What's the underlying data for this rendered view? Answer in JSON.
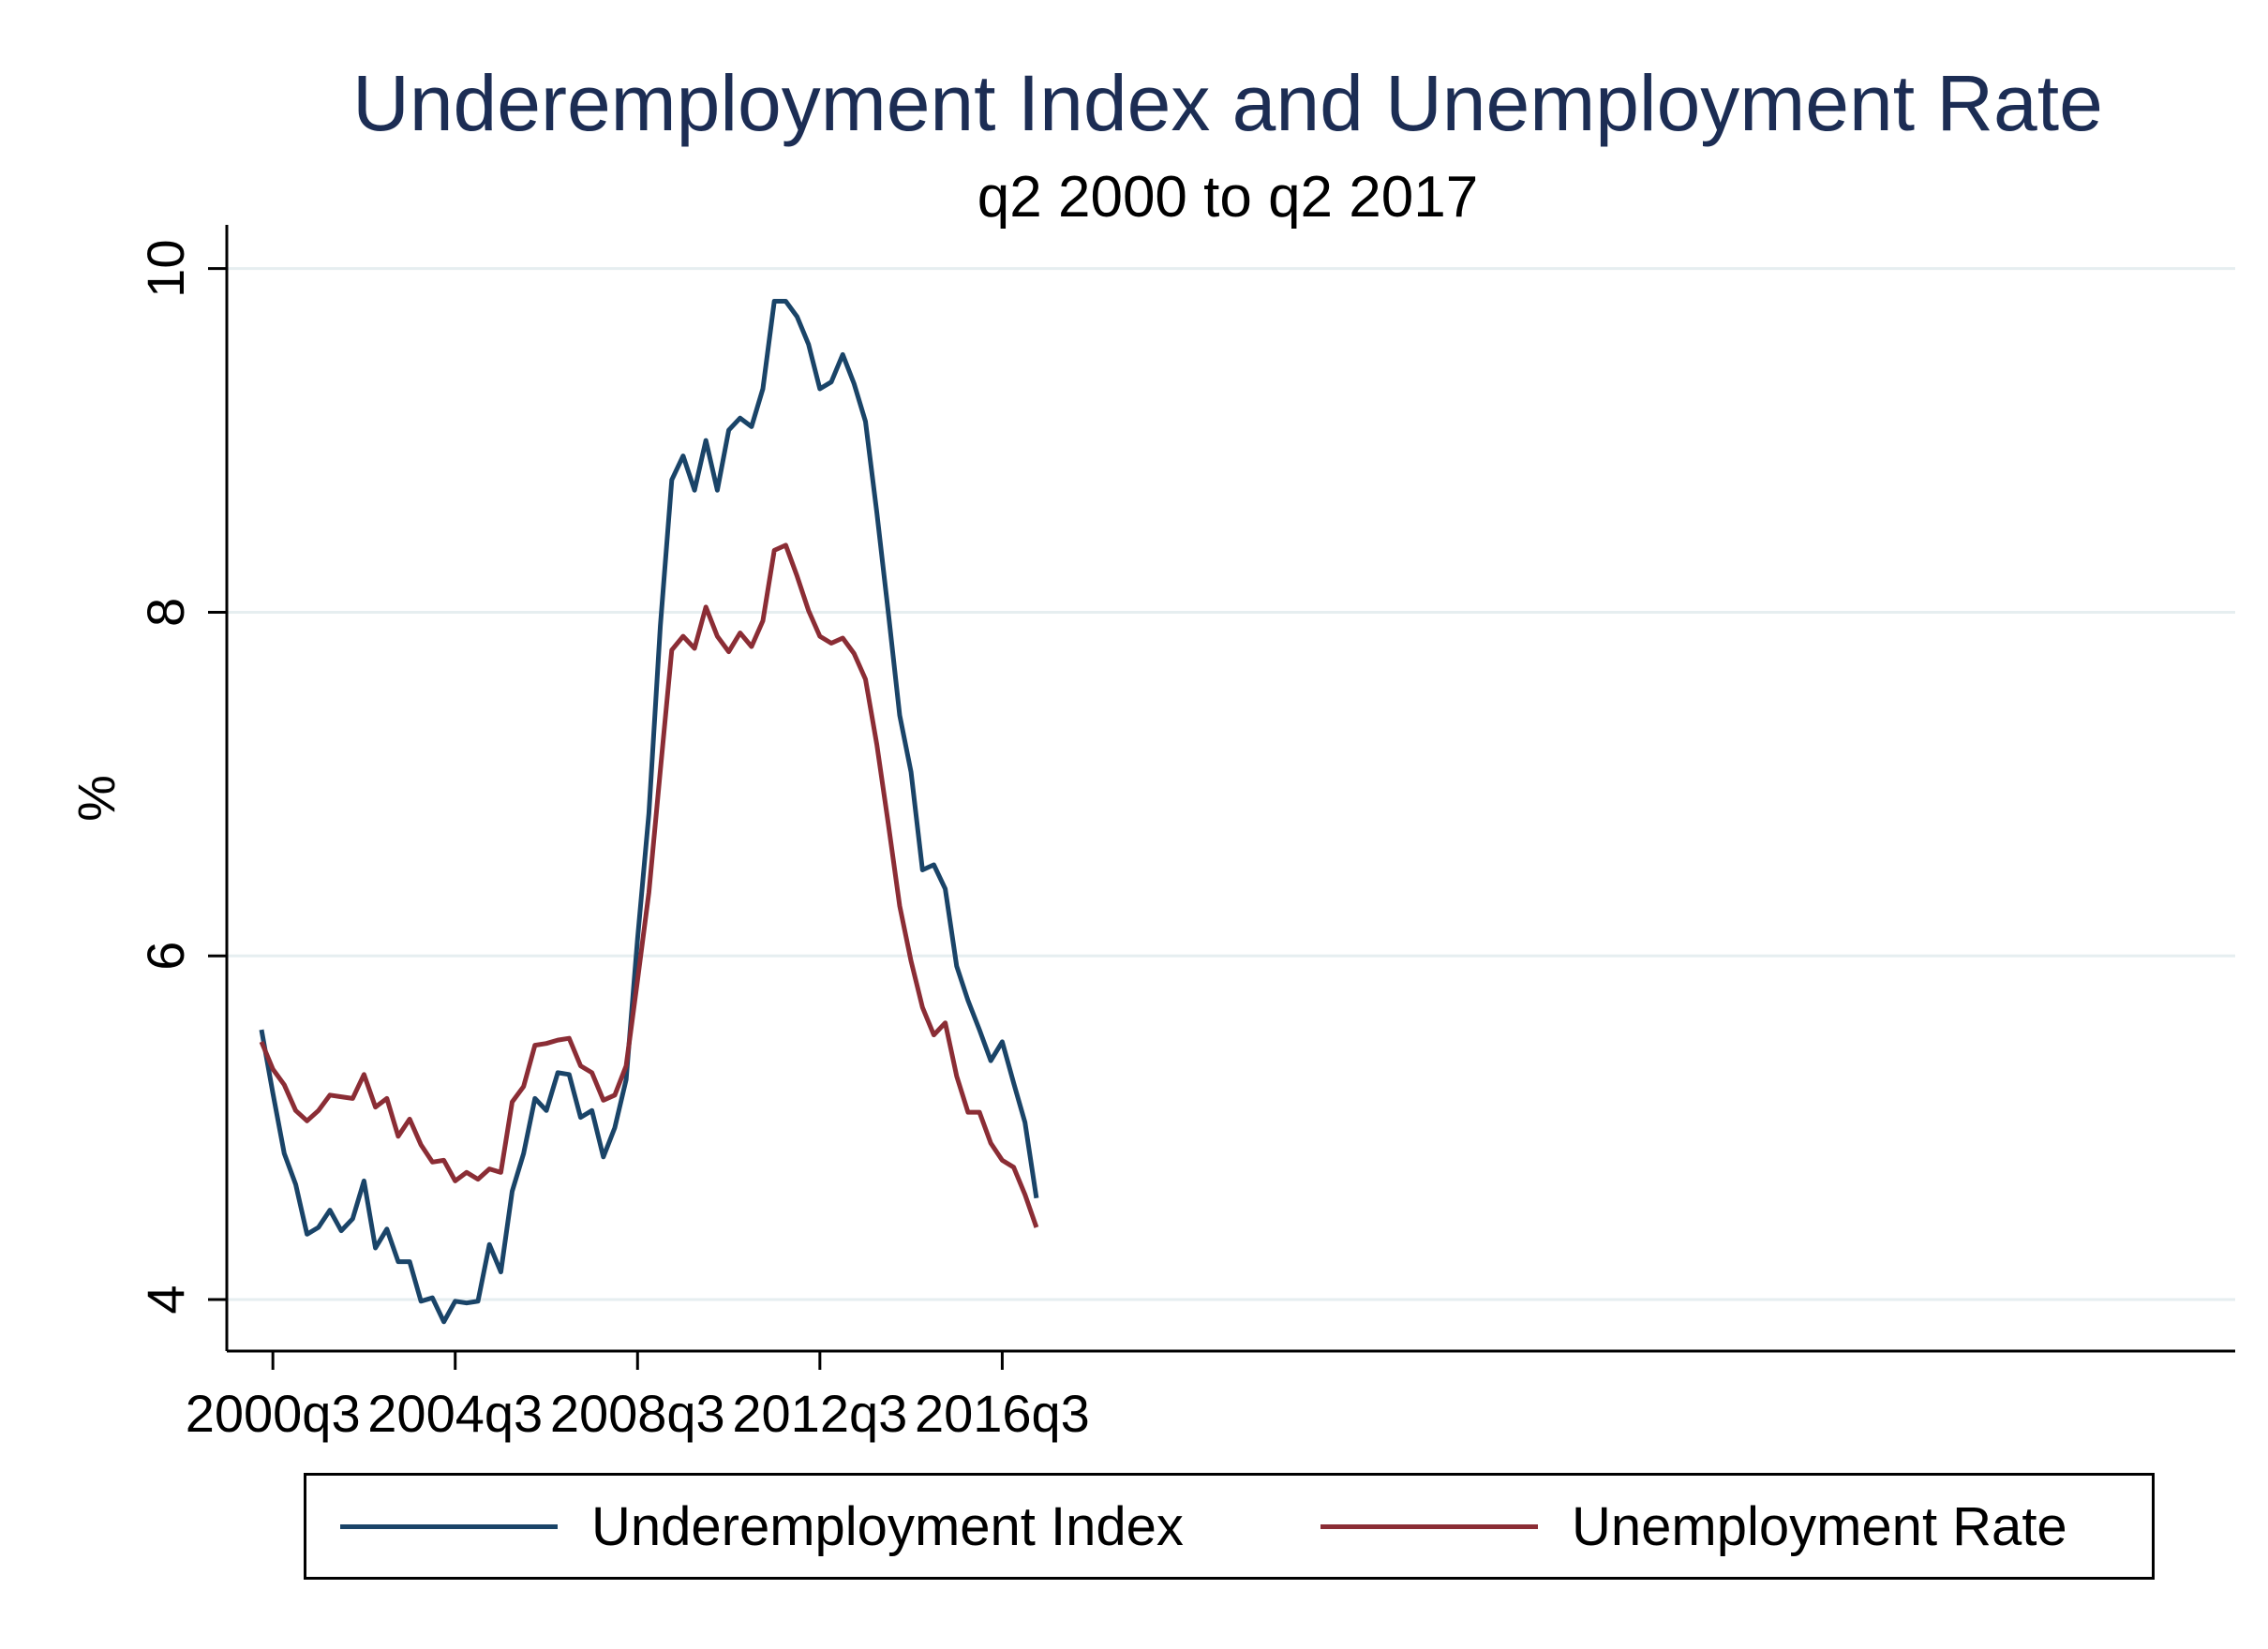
{
  "chart_data": {
    "type": "line",
    "title": "Underemployment Index and Unemployment Rate",
    "subtitle": "q2 2000 to q2 2017",
    "ylabel": "%",
    "xlabel": "",
    "ylim": [
      3.7,
      10.2
    ],
    "yticks": [
      4,
      6,
      8,
      10
    ],
    "xticks": [
      "2000q3",
      "2004q3",
      "2008q3",
      "2012q3",
      "2016q3"
    ],
    "grid": true,
    "legend_position": "bottom",
    "x": [
      "2000q2",
      "2000q3",
      "2000q4",
      "2001q1",
      "2001q2",
      "2001q3",
      "2001q4",
      "2002q1",
      "2002q2",
      "2002q3",
      "2002q4",
      "2003q1",
      "2003q2",
      "2003q3",
      "2003q4",
      "2004q1",
      "2004q2",
      "2004q3",
      "2004q4",
      "2005q1",
      "2005q2",
      "2005q3",
      "2005q4",
      "2006q1",
      "2006q2",
      "2006q3",
      "2006q4",
      "2007q1",
      "2007q2",
      "2007q3",
      "2007q4",
      "2008q1",
      "2008q2",
      "2008q3",
      "2008q4",
      "2009q1",
      "2009q2",
      "2009q3",
      "2009q4",
      "2010q1",
      "2010q2",
      "2010q3",
      "2010q4",
      "2011q1",
      "2011q2",
      "2011q3",
      "2011q4",
      "2012q1",
      "2012q2",
      "2012q3",
      "2012q4",
      "2013q1",
      "2013q2",
      "2013q3",
      "2013q4",
      "2014q1",
      "2014q2",
      "2014q3",
      "2014q4",
      "2015q1",
      "2015q2",
      "2015q3",
      "2015q4",
      "2016q1",
      "2016q2",
      "2016q3",
      "2016q4",
      "2017q1",
      "2017q2"
    ],
    "series": [
      {
        "name": "Underemployment Index",
        "color": "#1a4468",
        "values": [
          5.57,
          5.2,
          4.85,
          4.67,
          4.38,
          4.42,
          4.52,
          4.4,
          4.47,
          4.69,
          4.3,
          4.41,
          4.22,
          4.22,
          3.99,
          4.01,
          3.87,
          3.99,
          3.98,
          3.99,
          4.32,
          4.16,
          4.63,
          4.85,
          5.17,
          5.1,
          5.32,
          5.31,
          5.06,
          5.1,
          4.83,
          5.0,
          5.28,
          6.1,
          6.83,
          7.92,
          8.77,
          8.91,
          8.71,
          9.0,
          8.71,
          9.06,
          9.13,
          9.08,
          9.3,
          9.81,
          9.81,
          9.72,
          9.56,
          9.3,
          9.34,
          9.5,
          9.33,
          9.11,
          8.58,
          8.0,
          7.4,
          7.07,
          6.5,
          6.53,
          6.39,
          5.94,
          5.74,
          5.57,
          5.39,
          5.5,
          5.26,
          5.03,
          4.59
        ]
      },
      {
        "name": "Unemployment Rate",
        "color": "#8b2d35",
        "values": [
          5.5,
          5.34,
          5.25,
          5.1,
          5.04,
          5.1,
          5.19,
          5.18,
          5.17,
          5.31,
          5.12,
          5.17,
          4.95,
          5.05,
          4.9,
          4.8,
          4.81,
          4.69,
          4.74,
          4.7,
          4.76,
          4.74,
          5.15,
          5.24,
          5.48,
          5.49,
          5.51,
          5.52,
          5.36,
          5.32,
          5.16,
          5.19,
          5.36,
          5.86,
          6.37,
          7.08,
          7.78,
          7.86,
          7.79,
          8.03,
          7.86,
          7.77,
          7.88,
          7.8,
          7.95,
          8.36,
          8.39,
          8.21,
          8.01,
          7.86,
          7.82,
          7.85,
          7.76,
          7.61,
          7.23,
          6.77,
          6.29,
          5.97,
          5.7,
          5.54,
          5.61,
          5.3,
          5.09,
          5.09,
          4.91,
          4.81,
          4.77,
          4.61,
          4.42
        ]
      }
    ]
  }
}
